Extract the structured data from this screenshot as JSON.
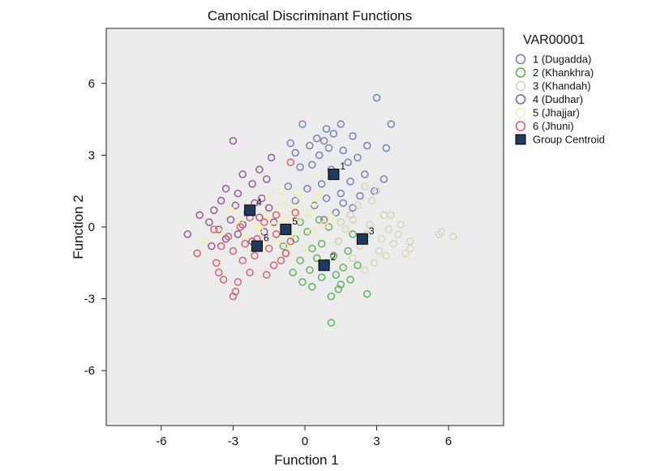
{
  "chart_data": {
    "type": "scatter",
    "title": "Canonical Discriminant Functions",
    "xlabel": "Function 1",
    "ylabel": "Function 2",
    "xlim": [
      -8.3,
      8.3
    ],
    "ylim": [
      -8.3,
      8.3
    ],
    "xticks": [
      -6,
      -3,
      0,
      3,
      6
    ],
    "yticks": [
      6,
      3,
      0,
      -3,
      -6
    ],
    "grid": false,
    "plot_background": "#ececec",
    "legend": {
      "title": "VAR00001",
      "placement": "right",
      "centroid_label": "Group Centroid"
    },
    "centroid_color": "#1f3a5c",
    "series": [
      {
        "name": "1 (Dugadda)",
        "code": "1",
        "color": "#7284bd",
        "centroid": [
          1.2,
          2.2
        ],
        "points": [
          [
            3.0,
            5.4
          ],
          [
            3.6,
            4.3
          ],
          [
            -0.1,
            4.3
          ],
          [
            1.5,
            4.3
          ],
          [
            0.9,
            4.1
          ],
          [
            1.2,
            3.9
          ],
          [
            0.5,
            3.7
          ],
          [
            2.0,
            3.8
          ],
          [
            0.8,
            3.6
          ],
          [
            -0.6,
            3.5
          ],
          [
            0.2,
            3.4
          ],
          [
            2.6,
            3.4
          ],
          [
            3.4,
            3.3
          ],
          [
            1.0,
            3.3
          ],
          [
            1.6,
            3.2
          ],
          [
            -0.4,
            3.1
          ],
          [
            0.6,
            3.0
          ],
          [
            2.2,
            2.9
          ],
          [
            1.8,
            2.7
          ],
          [
            0.3,
            2.6
          ],
          [
            -0.2,
            2.5
          ],
          [
            1.1,
            2.4
          ],
          [
            2.5,
            2.2
          ],
          [
            3.3,
            2.0
          ],
          [
            1.9,
            1.9
          ],
          [
            0.7,
            1.8
          ],
          [
            -0.7,
            1.7
          ],
          [
            0.1,
            1.6
          ],
          [
            2.9,
            1.5
          ],
          [
            1.5,
            1.4
          ],
          [
            2.3,
            1.3
          ],
          [
            0.9,
            1.2
          ],
          [
            -0.4,
            1.1
          ],
          [
            1.6,
            1.0
          ],
          [
            2.0,
            0.8
          ],
          [
            0.4,
            0.9
          ],
          [
            1.3,
            0.6
          ],
          [
            0.8,
            0.3
          ]
        ]
      },
      {
        "name": "2 (Khankhra)",
        "code": "2",
        "color": "#5fb55f",
        "centroid": [
          0.8,
          -1.6
        ],
        "points": [
          [
            1.1,
            -4.0
          ],
          [
            1.1,
            -2.9
          ],
          [
            2.6,
            -2.8
          ],
          [
            1.4,
            -2.6
          ],
          [
            0.3,
            -2.5
          ],
          [
            -0.1,
            -2.3
          ],
          [
            1.9,
            -2.2
          ],
          [
            0.7,
            -2.1
          ],
          [
            1.3,
            -2.0
          ],
          [
            -0.5,
            -1.9
          ],
          [
            0.2,
            -1.8
          ],
          [
            1.6,
            -1.7
          ],
          [
            2.2,
            -1.6
          ],
          [
            0.9,
            -1.5
          ],
          [
            -0.2,
            -1.4
          ],
          [
            0.5,
            -1.3
          ],
          [
            1.2,
            -1.2
          ],
          [
            -0.8,
            -1.1
          ],
          [
            1.8,
            -1.0
          ],
          [
            0.3,
            -0.9
          ],
          [
            0.7,
            -0.7
          ],
          [
            1.4,
            -0.6
          ],
          [
            -0.4,
            -0.5
          ],
          [
            2.0,
            -0.3
          ],
          [
            0.1,
            -0.2
          ],
          [
            1.0,
            0.0
          ],
          [
            -0.2,
            0.2
          ],
          [
            0.6,
            0.3
          ],
          [
            -0.9,
            -0.8
          ],
          [
            1.5,
            -2.4
          ]
        ]
      },
      {
        "name": "3 (Khandah)",
        "code": "3",
        "color": "#d9d5b7",
        "centroid": [
          2.4,
          -0.5
        ],
        "points": [
          [
            6.2,
            -0.4
          ],
          [
            5.7,
            -0.2
          ],
          [
            5.6,
            -0.3
          ],
          [
            4.4,
            -0.6
          ],
          [
            4.4,
            -0.9
          ],
          [
            3.9,
            -0.3
          ],
          [
            4.2,
            -1.1
          ],
          [
            3.4,
            -1.2
          ],
          [
            3.7,
            -0.7
          ],
          [
            2.9,
            -1.5
          ],
          [
            2.5,
            -1.8
          ],
          [
            3.1,
            -1.0
          ],
          [
            2.0,
            -1.3
          ],
          [
            2.7,
            0.1
          ],
          [
            3.3,
            0.5
          ],
          [
            3.6,
            0.5
          ],
          [
            2.8,
            1.1
          ],
          [
            2.2,
            0.9
          ],
          [
            3.0,
            1.5
          ],
          [
            1.9,
            0.5
          ],
          [
            1.5,
            0.2
          ],
          [
            1.7,
            -0.1
          ],
          [
            2.3,
            -0.8
          ],
          [
            3.5,
            -0.1
          ],
          [
            4.0,
            0.1
          ],
          [
            2.6,
            -0.3
          ],
          [
            1.4,
            -0.6
          ],
          [
            2.0,
            0.3
          ],
          [
            3.2,
            -0.5
          ],
          [
            2.5,
            1.7
          ]
        ]
      },
      {
        "name": "4 (Dudhar)",
        "code": "4",
        "color": "#915c98",
        "centroid": [
          -2.3,
          0.7
        ],
        "points": [
          [
            -3.0,
            3.6
          ],
          [
            -1.4,
            2.9
          ],
          [
            -1.9,
            2.4
          ],
          [
            -2.6,
            2.2
          ],
          [
            -1.6,
            2.0
          ],
          [
            -2.2,
            1.8
          ],
          [
            -3.3,
            1.6
          ],
          [
            -2.8,
            1.4
          ],
          [
            -1.8,
            1.2
          ],
          [
            -3.5,
            1.1
          ],
          [
            -2.1,
            1.0
          ],
          [
            -2.9,
            0.9
          ],
          [
            -1.5,
            0.8
          ],
          [
            -3.8,
            0.7
          ],
          [
            -2.4,
            0.6
          ],
          [
            -4.4,
            0.5
          ],
          [
            -1.9,
            0.4
          ],
          [
            -3.1,
            0.3
          ],
          [
            -4.0,
            0.2
          ],
          [
            -2.6,
            0.1
          ],
          [
            -3.6,
            -0.1
          ],
          [
            -1.7,
            -0.2
          ],
          [
            -2.8,
            -0.3
          ],
          [
            -4.9,
            -0.3
          ],
          [
            -3.3,
            -0.5
          ],
          [
            -2.2,
            -0.6
          ],
          [
            -1.3,
            0.2
          ],
          [
            -3.9,
            -0.8
          ]
        ]
      },
      {
        "name": "5 (Jhajjar)",
        "code": "5",
        "color": "#f3f0a7",
        "centroid": [
          -0.8,
          -0.1
        ],
        "points": [
          [
            -4.2,
            -0.6
          ],
          [
            -3.6,
            -0.2
          ],
          [
            -2.5,
            -0.4
          ],
          [
            -1.9,
            -0.1
          ],
          [
            -1.3,
            0.1
          ],
          [
            -0.8,
            0.3
          ],
          [
            -0.3,
            0.4
          ],
          [
            0.2,
            0.6
          ],
          [
            -1.6,
            0.5
          ],
          [
            -2.2,
            0.8
          ],
          [
            -0.5,
            -0.3
          ],
          [
            -1.1,
            -0.5
          ],
          [
            0.3,
            -0.2
          ],
          [
            0.8,
            0.1
          ],
          [
            -0.9,
            0.9
          ],
          [
            -1.5,
            1.2
          ],
          [
            -0.2,
            1.3
          ],
          [
            0.4,
            1.0
          ],
          [
            -2.7,
            0.3
          ],
          [
            -3.1,
            0.7
          ],
          [
            -0.7,
            -0.8
          ],
          [
            0.0,
            -0.9
          ],
          [
            -1.8,
            -0.8
          ],
          [
            1.1,
            0.4
          ],
          [
            -0.4,
            0.8
          ],
          [
            -1.0,
            1.5
          ],
          [
            0.6,
            1.4
          ],
          [
            -2.0,
            0.0
          ]
        ]
      },
      {
        "name": "6 (Jhuni)",
        "code": "6",
        "color": "#e45f68",
        "centroid": [
          -2.0,
          -0.8
        ],
        "points": [
          [
            -3.0,
            -2.9
          ],
          [
            -2.9,
            -2.7
          ],
          [
            -3.4,
            -2.2
          ],
          [
            -2.3,
            -1.9
          ],
          [
            -1.6,
            -2.0
          ],
          [
            -3.7,
            -1.5
          ],
          [
            -2.6,
            -1.4
          ],
          [
            -1.3,
            -1.6
          ],
          [
            -4.5,
            -1.1
          ],
          [
            -3.0,
            -1.0
          ],
          [
            -2.1,
            -1.2
          ],
          [
            -1.0,
            -1.4
          ],
          [
            -3.5,
            -0.8
          ],
          [
            -2.5,
            -0.7
          ],
          [
            -1.5,
            -0.9
          ],
          [
            -0.8,
            -1.1
          ],
          [
            -3.2,
            -0.4
          ],
          [
            -2.0,
            -0.5
          ],
          [
            -1.2,
            -0.3
          ],
          [
            -3.8,
            -0.1
          ],
          [
            -2.7,
            0.0
          ],
          [
            -1.7,
            0.2
          ],
          [
            -0.6,
            -0.6
          ],
          [
            -2.3,
            0.4
          ],
          [
            -0.4,
            0.6
          ],
          [
            -1.2,
            0.5
          ],
          [
            -3.6,
            -1.9
          ],
          [
            -2.8,
            -2.3
          ],
          [
            -0.6,
            2.7
          ]
        ]
      }
    ]
  }
}
